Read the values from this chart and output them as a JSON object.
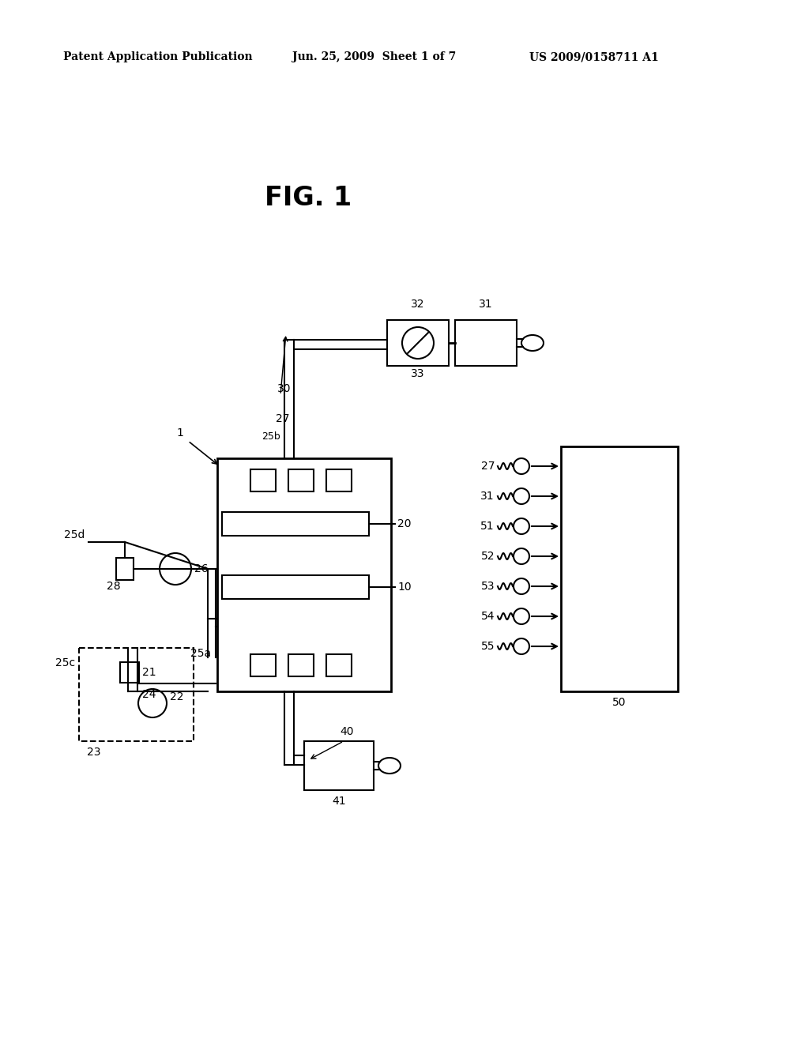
{
  "bg_color": "#ffffff",
  "header_left": "Patent Application Publication",
  "header_mid": "Jun. 25, 2009  Sheet 1 of 7",
  "header_right": "US 2009/0158711 A1",
  "fig_title": "FIG. 1",
  "labels": {
    "1": "1",
    "10": "10",
    "20": "20",
    "21": "21",
    "22": "22",
    "23": "23",
    "24": "24",
    "25a": "25a",
    "25b": "25b",
    "25c": "25c",
    "25d": "25d",
    "26": "26",
    "27": "27",
    "28": "28",
    "30": "30",
    "31": "31",
    "32": "32",
    "33": "33",
    "40": "40",
    "41": "41",
    "50": "50",
    "51": "51",
    "52": "52",
    "53": "53",
    "54": "54",
    "55": "55"
  }
}
